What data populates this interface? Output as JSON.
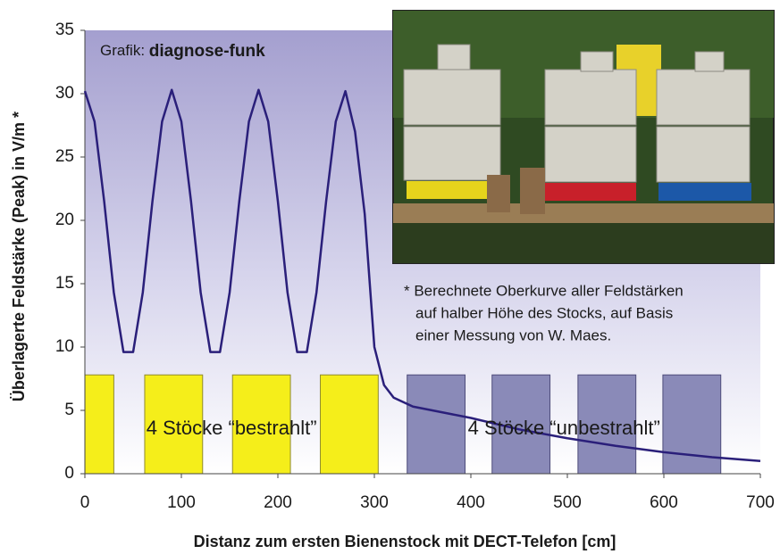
{
  "chart_data": {
    "type": "line",
    "source_prefix": "Grafik:",
    "source_name": "diagnose-funk",
    "footnote": [
      "* Berechnete Oberkurve aller Feldstärken",
      "auf halber Höhe des Stocks, auf Basis",
      "einer Messung von W. Maes."
    ],
    "xlabel": "Distanz zum ersten Bienenstock mit DECT-Telefon [cm]",
    "ylabel": "Überlagerte Feldstärke (Peak) in V/m *",
    "xlim": [
      0,
      700
    ],
    "ylim": [
      0,
      35
    ],
    "xticks": [
      0,
      100,
      200,
      300,
      400,
      500,
      600,
      700
    ],
    "yticks": [
      0,
      5,
      10,
      15,
      20,
      25,
      30,
      35
    ],
    "x": [
      0,
      10,
      20,
      30,
      40,
      50,
      60,
      70,
      80,
      90,
      100,
      110,
      120,
      130,
      140,
      150,
      160,
      170,
      180,
      190,
      200,
      210,
      220,
      230,
      240,
      250,
      260,
      270,
      280,
      290,
      300,
      310,
      320,
      340,
      360,
      380,
      400,
      450,
      500,
      550,
      600,
      650,
      700
    ],
    "series": [
      {
        "color": "#2a1f7a",
        "values": [
          30.2,
          27.8,
          21.5,
          14.3,
          9.6,
          9.6,
          14.3,
          21.5,
          27.8,
          30.3,
          27.8,
          21.5,
          14.3,
          9.6,
          9.6,
          14.3,
          21.5,
          27.8,
          30.3,
          27.8,
          21.5,
          14.3,
          9.6,
          9.6,
          14.3,
          21.5,
          27.8,
          30.2,
          27.0,
          20.5,
          10.0,
          7.0,
          6.0,
          5.3,
          5.0,
          4.7,
          4.4,
          3.5,
          2.8,
          2.2,
          1.7,
          1.3,
          1.0
        ]
      }
    ],
    "hive_groups": [
      {
        "label": "4 Stöcke “bestrahlt”",
        "color": "#f5ee1a",
        "height": 7.8,
        "ranges": [
          [
            0,
            30
          ],
          [
            62,
            122
          ],
          [
            153,
            213
          ],
          [
            244,
            304
          ]
        ]
      },
      {
        "label": "4 Stöcke “unbestrahlt”",
        "color": "#8a8ab8",
        "height": 7.8,
        "ranges": [
          [
            334,
            394
          ],
          [
            422,
            482
          ],
          [
            511,
            571
          ],
          [
            599,
            659
          ]
        ]
      }
    ]
  }
}
